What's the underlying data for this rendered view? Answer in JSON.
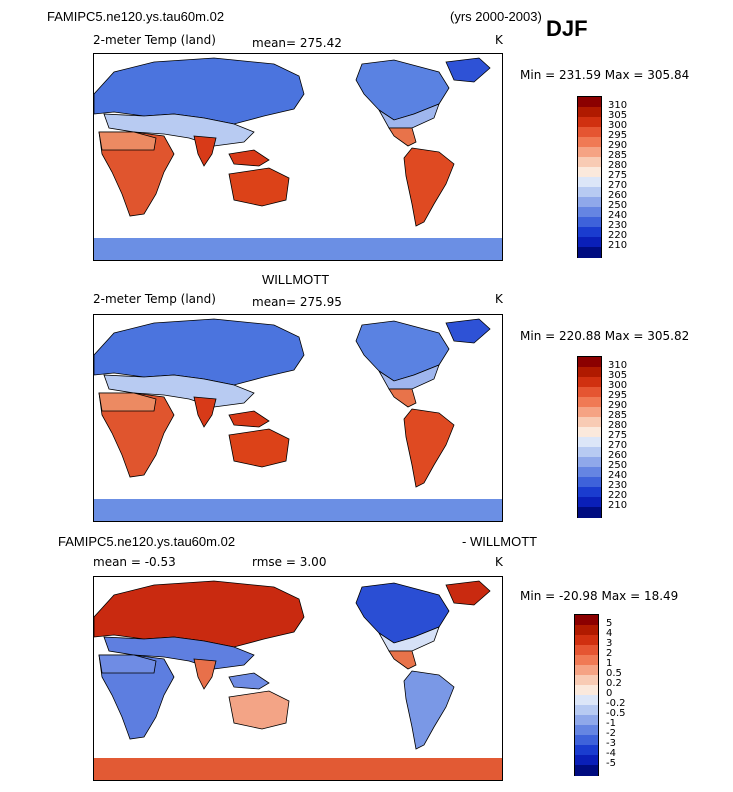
{
  "header": {
    "case_name": "FAMIPC5.ne120.ys.tau60m.02",
    "years": "(yrs 2000-2003)",
    "season": "DJF"
  },
  "panel1": {
    "title": "",
    "variable": "2-meter Temp (land)",
    "mean": "mean= 275.42",
    "units": "K",
    "minmax": "Min = 231.59  Max = 305.84"
  },
  "panel2": {
    "title": "WILLMOTT",
    "variable": "2-meter Temp (land)",
    "mean": "mean= 275.95",
    "units": "K",
    "minmax": "Min = 220.88  Max = 305.82"
  },
  "panel3": {
    "title_left": "FAMIPC5.ne120.ys.tau60m.02",
    "title_right": "- WILLMOTT",
    "mean": "mean =   -0.53",
    "rmse": "rmse =    3.00",
    "units": "K",
    "minmax": "Min = -20.98  Max =  18.49"
  },
  "colorbar_abs": {
    "labels": [
      "310",
      "305",
      "300",
      "295",
      "290",
      "285",
      "280",
      "275",
      "270",
      "260",
      "250",
      "240",
      "230",
      "220",
      "210"
    ],
    "colors": [
      "#8b0000",
      "#b01a00",
      "#d03010",
      "#e55532",
      "#f07a55",
      "#f5a384",
      "#f8cbb4",
      "#fbe9dc",
      "#dce6f8",
      "#b7caf2",
      "#8fa8ea",
      "#6585e2",
      "#3e62da",
      "#1a3ccf",
      "#0a1fb8",
      "#000c80"
    ]
  },
  "colorbar_diff": {
    "labels": [
      "5",
      "4",
      "3",
      "2",
      "1",
      "0.5",
      "0.2",
      "0",
      "-0.2",
      "-0.5",
      "-1",
      "-2",
      "-3",
      "-4",
      "-5"
    ],
    "colors": [
      "#8b0000",
      "#b01a00",
      "#d03010",
      "#e55532",
      "#f07a55",
      "#f5a384",
      "#f8cbb4",
      "#fbe9dc",
      "#dce6f8",
      "#b7caf2",
      "#8fa8ea",
      "#6585e2",
      "#3e62da",
      "#1a3ccf",
      "#0a1fb8",
      "#000c80"
    ]
  },
  "chart_data": [
    {
      "type": "heatmap",
      "title": "2-meter Temp (land)",
      "subtitle": "mean= 275.42",
      "units": "K",
      "min": 231.59,
      "max": 305.84,
      "levels": [
        210,
        220,
        230,
        240,
        250,
        260,
        270,
        275,
        280,
        285,
        290,
        295,
        300,
        305,
        310
      ]
    },
    {
      "type": "heatmap",
      "title": "2-meter Temp (land)",
      "subtitle": "mean= 275.95",
      "units": "K",
      "min": 220.88,
      "max": 305.82,
      "levels": [
        210,
        220,
        230,
        240,
        250,
        260,
        270,
        275,
        280,
        285,
        290,
        295,
        300,
        305,
        310
      ]
    },
    {
      "type": "heatmap",
      "title": "FAMIPC5.ne120.ys.tau60m.02 - WILLMOTT",
      "subtitle": "mean = -0.53, rmse = 3.00",
      "units": "K",
      "min": -20.98,
      "max": 18.49,
      "levels": [
        -5,
        -4,
        -3,
        -2,
        -1,
        -0.5,
        -0.2,
        0,
        0.2,
        0.5,
        1,
        2,
        3,
        4,
        5
      ]
    }
  ]
}
